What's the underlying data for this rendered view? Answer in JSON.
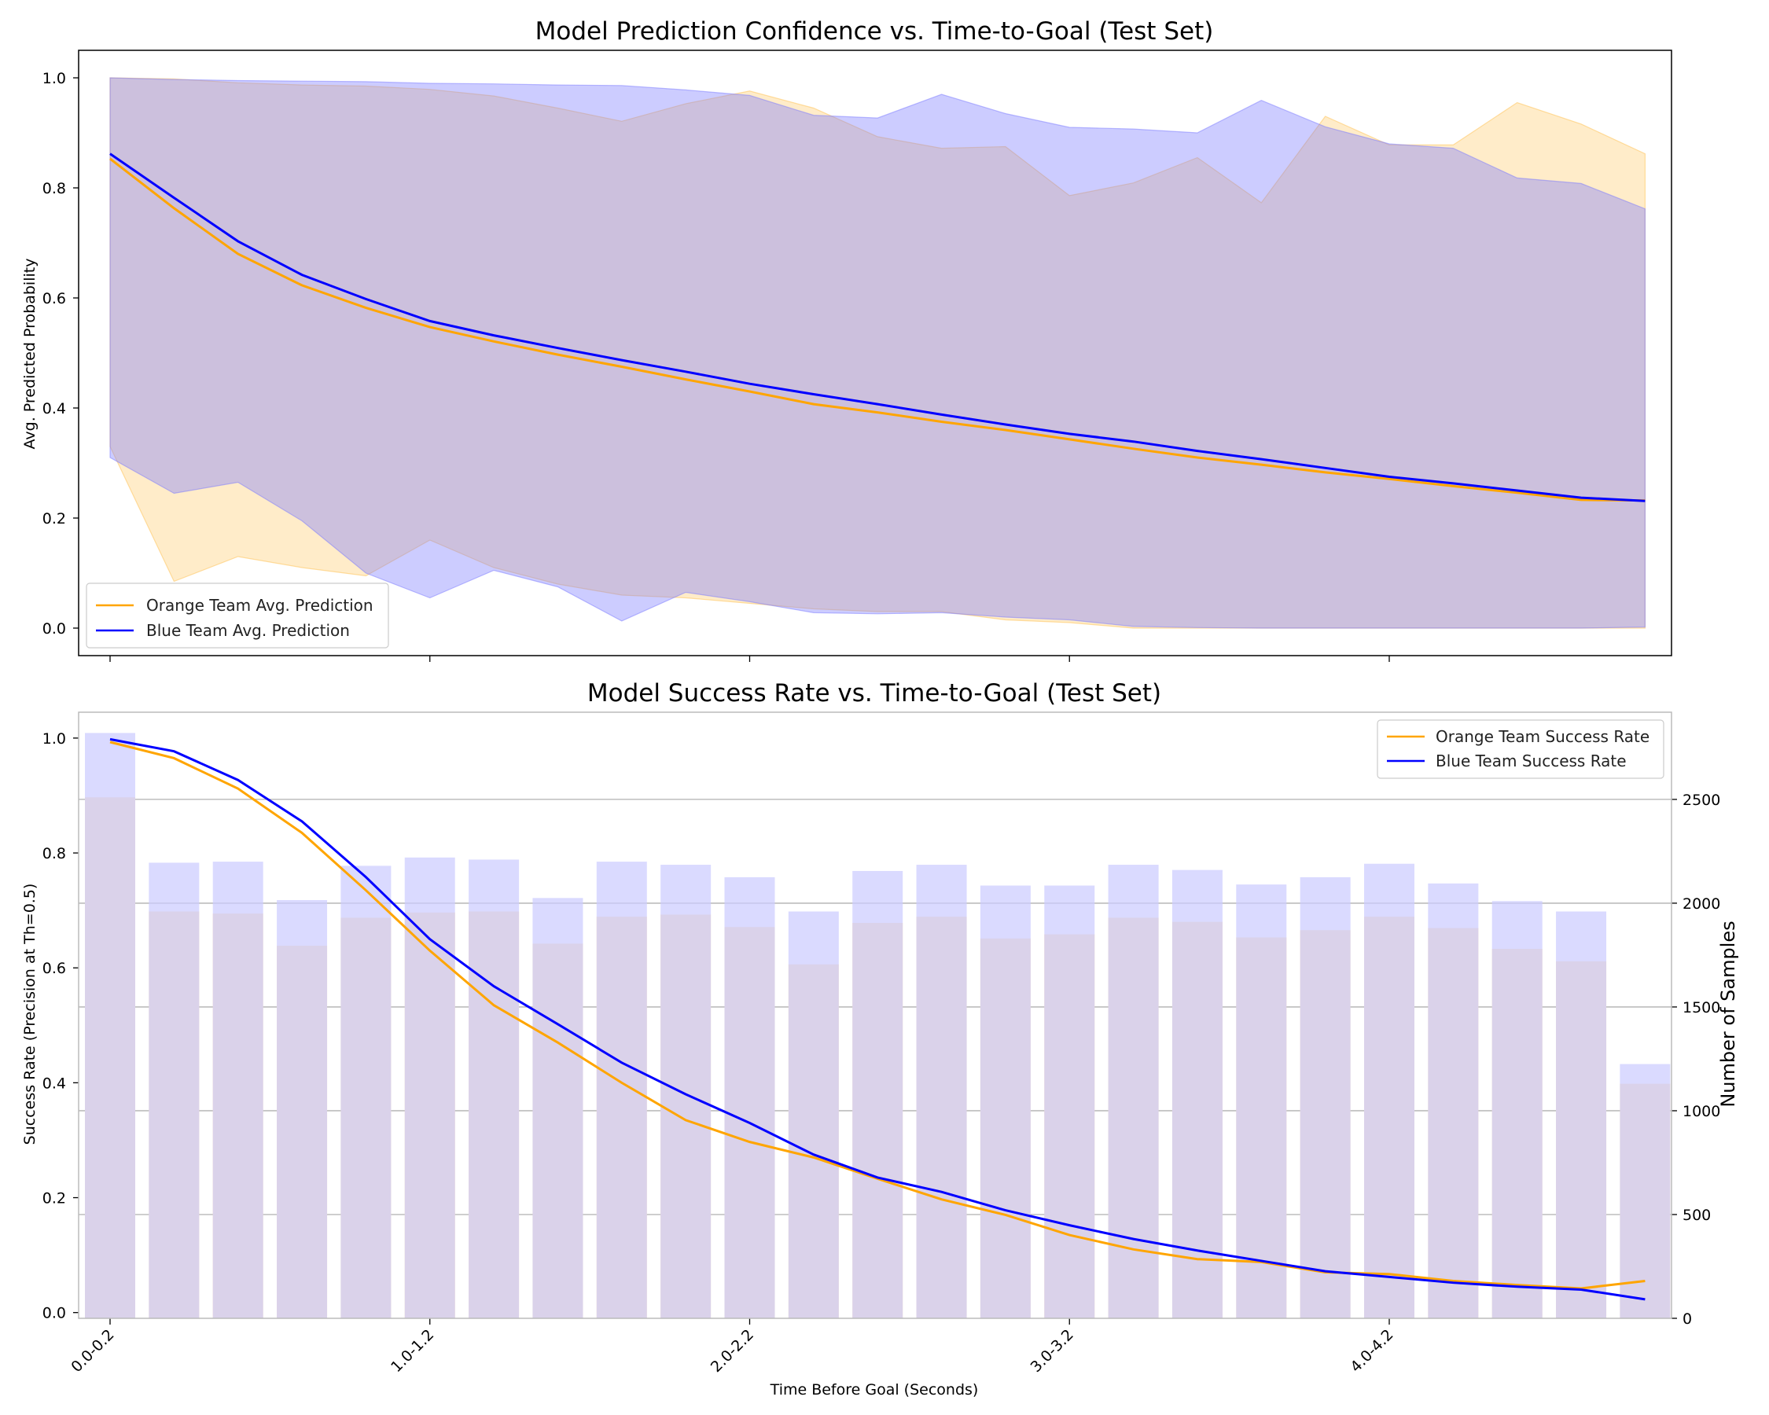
{
  "chart_data": [
    {
      "type": "line",
      "title": "Model Prediction Confidence vs. Time-to-Goal (Test Set)",
      "xlabel": "",
      "ylabel": "Avg. Predicted Probability",
      "ylim": [
        -0.05,
        1.05
      ],
      "yticks": [
        "0.0",
        "0.2",
        "0.4",
        "0.6",
        "0.8",
        "1.0"
      ],
      "legend_position": "lower-left",
      "series": [
        {
          "name": "Orange Team Avg. Prediction",
          "color": "#ffa500",
          "mean": [
            0.853,
            0.763,
            0.68,
            0.623,
            0.582,
            0.547,
            0.521,
            0.497,
            0.475,
            0.452,
            0.43,
            0.407,
            0.392,
            0.375,
            0.36,
            0.343,
            0.326,
            0.31,
            0.297,
            0.283,
            0.271,
            0.258,
            0.246,
            0.233,
            0.232
          ],
          "upper": [
            1.0,
            0.998,
            0.991,
            0.987,
            0.985,
            0.979,
            0.967,
            0.945,
            0.921,
            0.953,
            0.976,
            0.945,
            0.893,
            0.872,
            0.875,
            0.786,
            0.809,
            0.855,
            0.773,
            0.93,
            0.878,
            0.878,
            0.955,
            0.916,
            0.862
          ],
          "lower": [
            0.33,
            0.085,
            0.13,
            0.11,
            0.095,
            0.16,
            0.11,
            0.08,
            0.06,
            0.055,
            0.045,
            0.035,
            0.03,
            0.03,
            0.015,
            0.01,
            0.0,
            0.0,
            0.0,
            0.0,
            0.0,
            0.0,
            0.0,
            0.0,
            0.0
          ]
        },
        {
          "name": "Blue Team Avg. Prediction",
          "color": "#0000ff",
          "mean": [
            0.862,
            0.782,
            0.703,
            0.642,
            0.598,
            0.558,
            0.532,
            0.509,
            0.487,
            0.466,
            0.444,
            0.425,
            0.407,
            0.388,
            0.37,
            0.353,
            0.339,
            0.322,
            0.307,
            0.291,
            0.275,
            0.263,
            0.25,
            0.237,
            0.231
          ],
          "upper": [
            1.0,
            0.997,
            0.995,
            0.994,
            0.993,
            0.99,
            0.989,
            0.987,
            0.986,
            0.978,
            0.968,
            0.932,
            0.927,
            0.97,
            0.935,
            0.91,
            0.907,
            0.9,
            0.959,
            0.911,
            0.88,
            0.872,
            0.818,
            0.808,
            0.762
          ],
          "lower": [
            0.31,
            0.245,
            0.265,
            0.195,
            0.1,
            0.055,
            0.105,
            0.075,
            0.013,
            0.065,
            0.048,
            0.028,
            0.026,
            0.028,
            0.02,
            0.015,
            0.003,
            0.001,
            0.0,
            0.0,
            0.0,
            0.0,
            0.0,
            0.0,
            0.002
          ]
        }
      ]
    },
    {
      "type": "bar",
      "title": "Model Success Rate vs. Time-to-Goal (Test Set)",
      "xlabel": "Time Before Goal (Seconds)",
      "ylabel": "Success Rate (Precision at Th=0.5)",
      "y2label": "Number of Samples",
      "ylim": [
        -0.01,
        1.045
      ],
      "y2lim": [
        0,
        2920
      ],
      "yticks": [
        "0.0",
        "0.2",
        "0.4",
        "0.6",
        "0.8",
        "1.0"
      ],
      "y2ticks": [
        "0",
        "500",
        "1000",
        "1500",
        "2000",
        "2500"
      ],
      "y2grid": true,
      "legend_position": "top-right",
      "xticklabels": [
        "0.0-0.2",
        "1.0-1.2",
        "2.0-2.2",
        "3.0-3.2",
        "4.0-4.2"
      ],
      "bars": [
        {
          "color": "#ffe0b3",
          "values": [
            2510,
            1960,
            1950,
            1795,
            1930,
            1955,
            1960,
            1805,
            1935,
            1945,
            1885,
            1705,
            1905,
            1935,
            1830,
            1850,
            1930,
            1910,
            1835,
            1870,
            1935,
            1880,
            1780,
            1720,
            1130
          ]
        },
        {
          "color": "#ccccff",
          "values": [
            2820,
            2195,
            2200,
            2015,
            2180,
            2220,
            2210,
            2025,
            2200,
            2185,
            2125,
            1960,
            2155,
            2185,
            2085,
            2085,
            2185,
            2160,
            2090,
            2125,
            2190,
            2095,
            2010,
            1960,
            1225
          ]
        }
      ],
      "series": [
        {
          "name": "Orange Team Success Rate",
          "color": "#ffa500",
          "values": [
            0.993,
            0.965,
            0.912,
            0.835,
            0.735,
            0.63,
            0.535,
            0.47,
            0.4,
            0.335,
            0.297,
            0.27,
            0.233,
            0.197,
            0.17,
            0.135,
            0.11,
            0.093,
            0.088,
            0.07,
            0.067,
            0.055,
            0.048,
            0.042,
            0.055
          ]
        },
        {
          "name": "Blue Team Success Rate",
          "color": "#0000ff",
          "values": [
            0.998,
            0.977,
            0.927,
            0.855,
            0.758,
            0.65,
            0.568,
            0.502,
            0.435,
            0.38,
            0.33,
            0.275,
            0.235,
            0.21,
            0.178,
            0.152,
            0.128,
            0.108,
            0.09,
            0.072,
            0.062,
            0.052,
            0.045,
            0.04,
            0.023
          ]
        }
      ]
    }
  ]
}
